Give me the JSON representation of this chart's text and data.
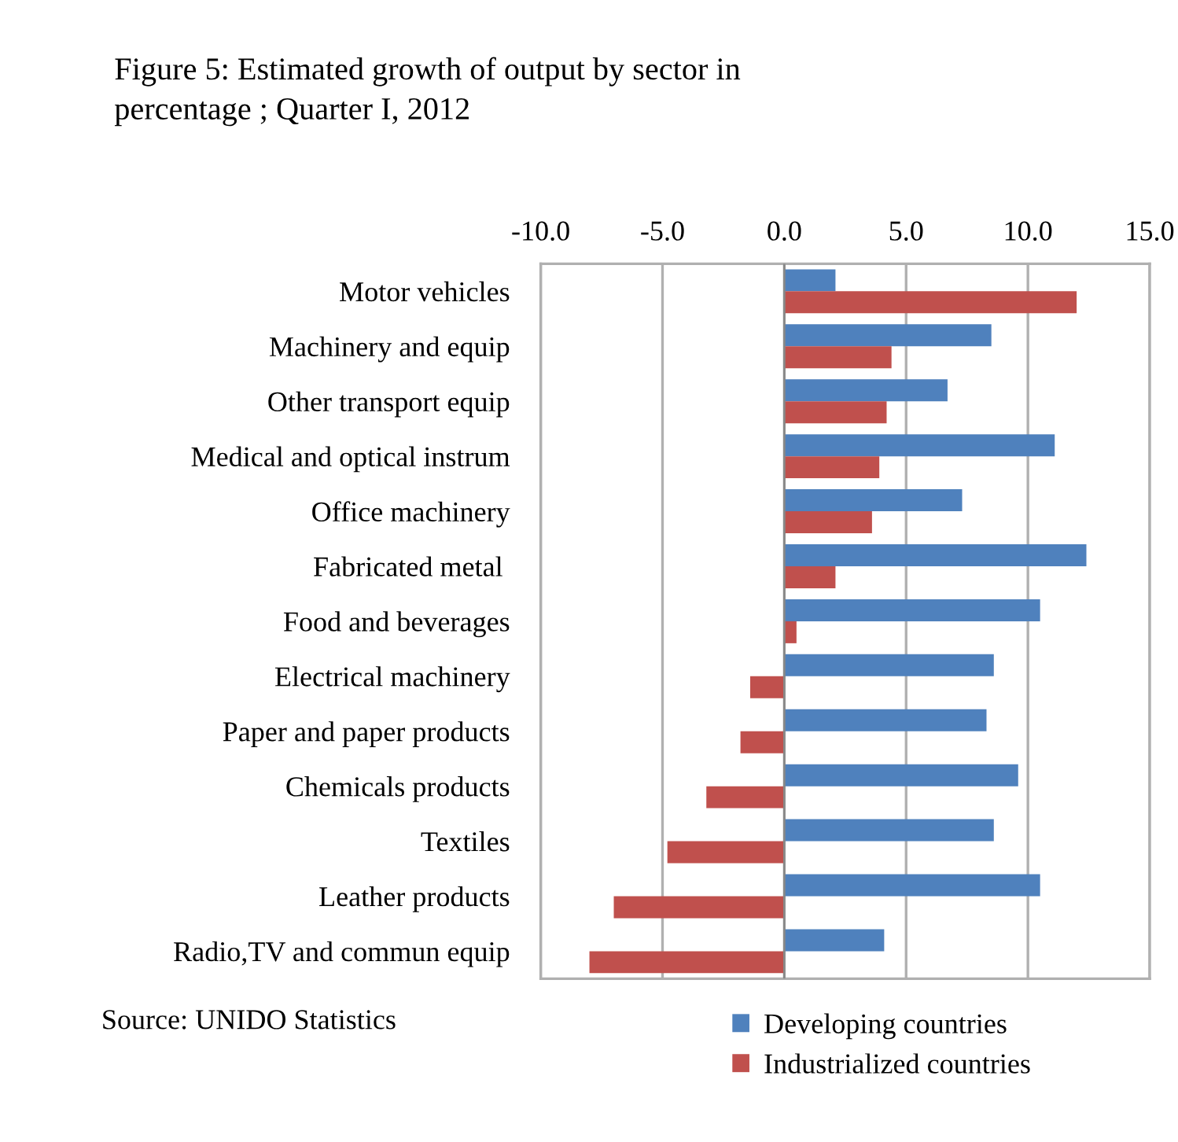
{
  "chart_data": {
    "type": "bar",
    "orientation": "horizontal",
    "title": "Figure 5: Estimated growth of output by sector in\npercentage ; Quarter I, 2012",
    "categories": [
      "Motor vehicles",
      "Machinery and equip",
      "Other transport equip",
      "Medical and optical instrum",
      "Office machinery",
      "Fabricated metal ",
      "Food and beverages",
      "Electrical machinery",
      "Paper and paper products",
      "Chemicals products",
      "Textiles",
      "Leather products",
      "Radio,TV and commun equip"
    ],
    "series": [
      {
        "name": "Developing countries",
        "color": "#4f81bd",
        "values": [
          2.1,
          8.5,
          6.7,
          11.1,
          7.3,
          12.4,
          10.5,
          8.6,
          8.3,
          9.6,
          8.6,
          10.5,
          4.1
        ]
      },
      {
        "name": "Industrialized countries",
        "color": "#c0504d",
        "values": [
          12.0,
          4.4,
          4.2,
          3.9,
          3.6,
          2.1,
          0.5,
          -1.4,
          -1.8,
          -3.2,
          -4.8,
          -7.0,
          -8.0
        ]
      }
    ],
    "xlim": [
      -10,
      15
    ],
    "xticks": [
      {
        "value": -10,
        "label": "-10.0"
      },
      {
        "value": -5,
        "label": "-5.0"
      },
      {
        "value": 0,
        "label": "0.0"
      },
      {
        "value": 5,
        "label": "5.0"
      },
      {
        "value": 10,
        "label": "10.0"
      },
      {
        "value": 15,
        "label": "15.0"
      }
    ],
    "grid": "x",
    "legend": "bottom",
    "annotations": [
      "Source: UNIDO Statistics"
    ]
  }
}
